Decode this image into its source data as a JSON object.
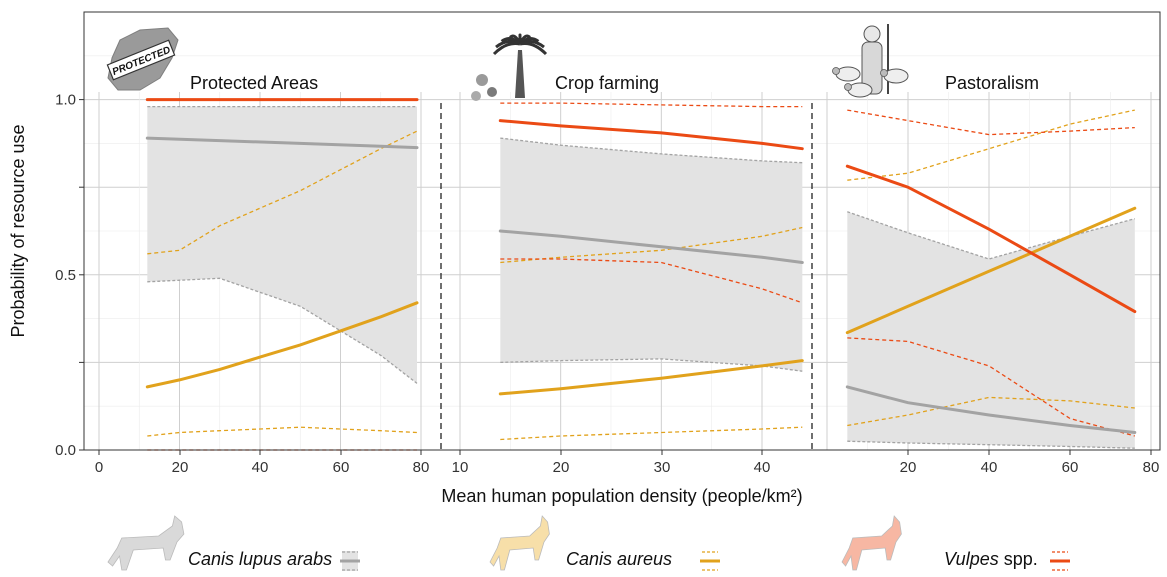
{
  "chart_data": {
    "type": "line",
    "ylabel": "Probability of resource use",
    "xlabel": "Mean human population density (people/km²)",
    "ylim": [
      0,
      1.25
    ],
    "y_ticks": [
      "0.0",
      "0.5",
      "1.0"
    ],
    "panels": [
      {
        "title": "Protected Areas",
        "icon": "protected-area-map-icon",
        "icon_text": "PROTECTED",
        "xlim": [
          -2,
          82
        ],
        "x_ticks": [
          "0",
          "20",
          "40",
          "60",
          "80"
        ],
        "series": [
          {
            "name": "Canis lupus arabs",
            "color": "#a3a3a3",
            "x": [
              12,
              30,
              50,
              70,
              79
            ],
            "mean": [
              0.89,
              0.883,
              0.875,
              0.867,
              0.863
            ],
            "lower": [
              0.48,
              0.49,
              0.41,
              0.27,
              0.19
            ],
            "upper": [
              0.98,
              0.98,
              0.98,
              0.98,
              0.98
            ]
          },
          {
            "name": "Canis aureus",
            "color": "#e1a21c",
            "x": [
              12,
              20,
              30,
              40,
              50,
              60,
              70,
              79
            ],
            "mean": [
              0.18,
              0.2,
              0.23,
              0.265,
              0.3,
              0.34,
              0.38,
              0.42
            ],
            "lower": [
              0.04,
              0.05,
              0.055,
              0.06,
              0.065,
              0.06,
              0.055,
              0.05
            ],
            "upper": [
              0.56,
              0.57,
              0.64,
              0.69,
              0.74,
              0.8,
              0.86,
              0.91
            ]
          },
          {
            "name": "Vulpes spp.",
            "color": "#eb4a14",
            "x": [
              12,
              79
            ],
            "mean": [
              1.0,
              1.0
            ],
            "lower": [
              0.0,
              0.0
            ],
            "upper": [
              1.0,
              1.0
            ]
          }
        ]
      },
      {
        "title": "Crop farming",
        "icon": "palm-tree-crops-icon",
        "xlim": [
          8,
          48
        ],
        "x_ticks": [
          "10",
          "20",
          "30",
          "40"
        ],
        "series": [
          {
            "name": "Canis lupus arabs",
            "color": "#a3a3a3",
            "x": [
              14,
              20,
              30,
              40,
              44
            ],
            "mean": [
              0.625,
              0.61,
              0.58,
              0.55,
              0.535
            ],
            "lower": [
              0.25,
              0.255,
              0.26,
              0.24,
              0.225
            ],
            "upper": [
              0.89,
              0.87,
              0.845,
              0.825,
              0.82
            ]
          },
          {
            "name": "Canis aureus",
            "color": "#e1a21c",
            "x": [
              14,
              20,
              30,
              40,
              44
            ],
            "mean": [
              0.16,
              0.175,
              0.205,
              0.24,
              0.255
            ],
            "lower": [
              0.03,
              0.04,
              0.05,
              0.06,
              0.065
            ],
            "upper": [
              0.535,
              0.55,
              0.57,
              0.61,
              0.635
            ]
          },
          {
            "name": "Vulpes spp.",
            "color": "#eb4a14",
            "x": [
              14,
              20,
              30,
              40,
              44
            ],
            "mean": [
              0.94,
              0.925,
              0.905,
              0.875,
              0.86
            ],
            "lower": [
              0.545,
              0.545,
              0.535,
              0.46,
              0.42
            ],
            "upper": [
              0.99,
              0.99,
              0.985,
              0.98,
              0.98
            ]
          }
        ]
      },
      {
        "title": "Pastoralism",
        "icon": "shepherd-sheep-icon",
        "xlim": [
          -3,
          80
        ],
        "x_ticks": [
          "20",
          "40",
          "60",
          "80"
        ],
        "series": [
          {
            "name": "Canis lupus arabs",
            "color": "#a3a3a3",
            "x": [
              5,
              20,
              40,
              60,
              76
            ],
            "mean": [
              0.18,
              0.135,
              0.1,
              0.07,
              0.05
            ],
            "lower": [
              0.025,
              0.02,
              0.015,
              0.01,
              0.005
            ],
            "upper": [
              0.68,
              0.62,
              0.545,
              0.61,
              0.66
            ]
          },
          {
            "name": "Canis aureus",
            "color": "#e1a21c",
            "x": [
              5,
              20,
              40,
              60,
              76
            ],
            "mean": [
              0.335,
              0.41,
              0.51,
              0.61,
              0.69
            ],
            "lower": [
              0.07,
              0.1,
              0.15,
              0.14,
              0.12
            ],
            "upper": [
              0.77,
              0.79,
              0.86,
              0.93,
              0.97
            ]
          },
          {
            "name": "Vulpes spp.",
            "color": "#eb4a14",
            "x": [
              5,
              20,
              40,
              60,
              76
            ],
            "mean": [
              0.81,
              0.75,
              0.63,
              0.5,
              0.395
            ],
            "lower": [
              0.32,
              0.31,
              0.24,
              0.09,
              0.04
            ],
            "upper": [
              0.97,
              0.94,
              0.9,
              0.91,
              0.92
            ]
          }
        ]
      }
    ],
    "legend": [
      {
        "name": "Canis lupus arabs",
        "italic": true,
        "suffix": "",
        "color": "#a3a3a3",
        "fill_ribbon": true,
        "icon": "wolf-icon",
        "icon_color": "#d9d9d9"
      },
      {
        "name": "Canis aureus",
        "italic": true,
        "suffix": "",
        "color": "#e1a21c",
        "fill_ribbon": false,
        "icon": "golden-jackal-icon",
        "icon_color": "#f7dfa9"
      },
      {
        "name": "Vulpes",
        "italic": true,
        "suffix": " spp.",
        "color": "#eb4a14",
        "fill_ribbon": false,
        "icon": "fox-icon",
        "icon_color": "#f7b7a3"
      }
    ],
    "grid": true,
    "panel_separators": "dashed vertical lines"
  }
}
